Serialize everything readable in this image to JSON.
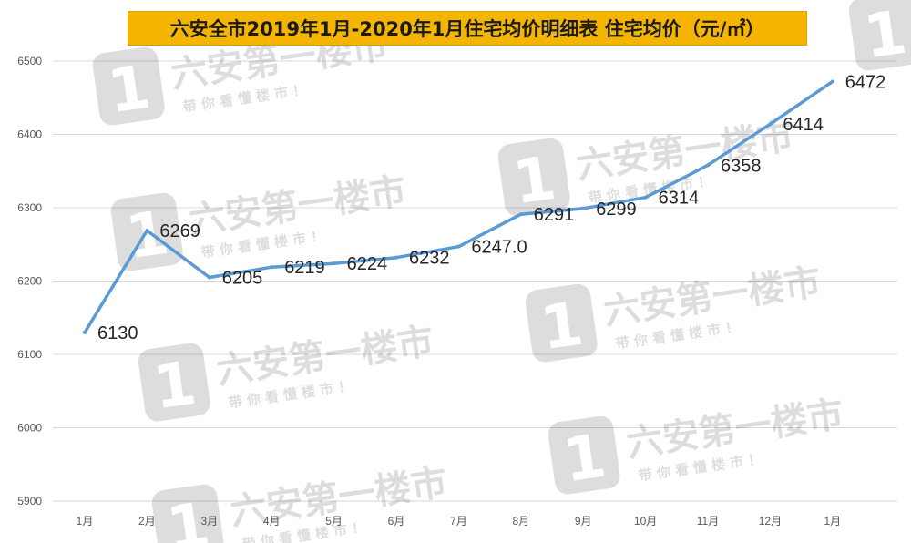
{
  "chart_data": {
    "type": "line",
    "title": "六安全市2019年1月-2020年1月住宅均价明细表 住宅均价（元/㎡）",
    "categories": [
      "1月",
      "2月",
      "3月",
      "4月",
      "5月",
      "6月",
      "7月",
      "8月",
      "9月",
      "10月",
      "11月",
      "12月",
      "1月"
    ],
    "series": [
      {
        "values": [
          6130,
          6269,
          6205,
          6219,
          6224,
          6232,
          6247.0,
          6291,
          6299,
          6314,
          6358,
          6414,
          6472
        ],
        "labels": [
          "6130",
          "6269",
          "6205",
          "6219",
          "6224",
          "6232",
          "6247.0",
          "6291",
          "6299",
          "6314",
          "6358",
          "6414",
          "6472"
        ],
        "color": "#5b9bd5"
      }
    ],
    "ylim": [
      5900,
      6500
    ],
    "yticks": [
      "5900",
      "6000",
      "6100",
      "6200",
      "6300",
      "6400",
      "6500"
    ],
    "grid": true,
    "xlabel": "",
    "ylabel": ""
  },
  "watermark": {
    "brand": "六安第一楼市",
    "slogan": "带 你 看 懂 楼 市 ！",
    "logo_digit": "1"
  },
  "colors": {
    "title_bg": "#f5b400",
    "line": "#5b9bd5",
    "grid": "#d9d9d9"
  }
}
